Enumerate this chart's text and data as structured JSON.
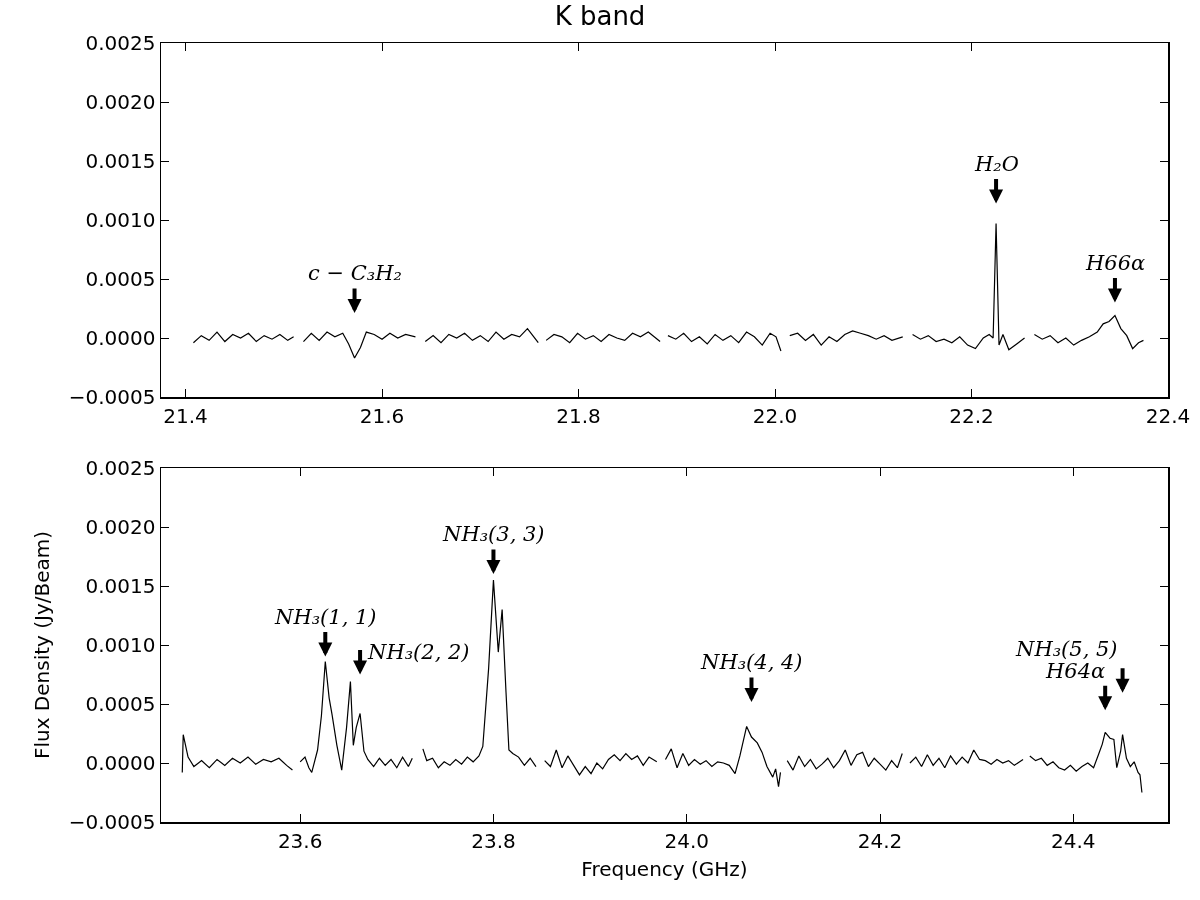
{
  "chart_data": [
    {
      "type": "line",
      "title": "K band",
      "color": "#000000",
      "x": [
        21.408,
        21.416,
        21.424,
        21.432,
        21.44,
        21.448,
        21.456,
        21.464,
        21.472,
        21.48,
        21.488,
        21.496,
        21.504,
        21.51,
        21.515,
        21.52,
        21.528,
        21.536,
        21.544,
        21.552,
        21.56,
        21.566,
        21.572,
        21.578,
        21.584,
        21.592,
        21.6,
        21.608,
        21.616,
        21.624,
        21.634,
        21.639,
        21.644,
        21.652,
        21.66,
        21.668,
        21.676,
        21.684,
        21.692,
        21.7,
        21.708,
        21.716,
        21.724,
        21.732,
        21.74,
        21.748,
        21.759,
        21.763,
        21.767,
        21.775,
        21.783,
        21.791,
        21.799,
        21.807,
        21.815,
        21.823,
        21.831,
        21.839,
        21.847,
        21.855,
        21.863,
        21.871,
        21.883,
        21.887,
        21.891,
        21.899,
        21.907,
        21.915,
        21.923,
        21.931,
        21.939,
        21.947,
        21.955,
        21.963,
        21.971,
        21.979,
        21.987,
        21.995,
        22.001,
        22.006,
        22.01,
        22.015,
        22.023,
        22.031,
        22.039,
        22.047,
        22.055,
        22.063,
        22.071,
        22.079,
        22.087,
        22.095,
        22.103,
        22.111,
        22.119,
        22.13,
        22.135,
        22.14,
        22.148,
        22.156,
        22.164,
        22.172,
        22.18,
        22.188,
        22.196,
        22.204,
        22.212,
        22.218,
        22.222,
        22.225,
        22.228,
        22.232,
        22.238,
        22.246,
        22.254,
        22.259,
        22.264,
        22.272,
        22.28,
        22.288,
        22.296,
        22.304,
        22.312,
        22.32,
        22.328,
        22.334,
        22.34,
        22.346,
        22.352,
        22.358,
        22.364,
        22.37,
        22.375
      ],
      "values": [
        -4e-05,
        2e-05,
        -2e-05,
        5e-05,
        -3e-05,
        3e-05,
        0.0,
        4e-05,
        -3e-05,
        2e-05,
        -1e-05,
        3e-05,
        -2e-05,
        1e-05,
        null,
        -3e-05,
        4e-05,
        -2e-05,
        5e-05,
        1e-05,
        4e-05,
        -5e-05,
        -0.00017,
        -8e-05,
        5e-05,
        3e-05,
        -1e-05,
        4e-05,
        0.0,
        3e-05,
        1e-05,
        null,
        -3e-05,
        2e-05,
        -4e-05,
        3e-05,
        0.0,
        4e-05,
        -2e-05,
        2e-05,
        -3e-05,
        5e-05,
        -1e-05,
        3e-05,
        1e-05,
        8e-05,
        -4e-05,
        null,
        -2e-05,
        3e-05,
        1e-05,
        -4e-05,
        4e-05,
        -1e-05,
        2e-05,
        -3e-05,
        3e-05,
        0.0,
        -2e-05,
        4e-05,
        1e-05,
        5e-05,
        -3e-05,
        null,
        2e-05,
        -1e-05,
        4e-05,
        -3e-05,
        1e-05,
        -5e-05,
        3e-05,
        -2e-05,
        2e-05,
        -4e-05,
        5e-05,
        1e-05,
        -6e-05,
        4e-05,
        1e-05,
        -0.00011,
        null,
        2e-05,
        4e-05,
        -2e-05,
        3e-05,
        -6e-05,
        1e-05,
        -3e-05,
        3e-05,
        6e-05,
        4e-05,
        2e-05,
        -1e-05,
        2e-05,
        -2e-05,
        1e-05,
        null,
        3e-05,
        -1e-05,
        2e-05,
        -3e-05,
        -1e-05,
        -4e-05,
        1e-05,
        -6e-05,
        -9e-05,
        0.0,
        3e-05,
        0.0,
        0.00097,
        -6e-05,
        3e-05,
        -0.0001,
        -5e-05,
        0.0,
        null,
        3e-05,
        -1e-05,
        2e-05,
        -4e-05,
        0.0,
        -6e-05,
        -2e-05,
        1e-05,
        5e-05,
        0.00012,
        0.00014,
        0.00019,
        8e-05,
        2e-05,
        -9e-05,
        -4e-05,
        -2e-05
      ],
      "xlim": [
        21.375,
        22.4
      ],
      "ylim": [
        -0.0005,
        0.0025
      ],
      "xticks": [
        21.4,
        21.6,
        21.8,
        {
          "value": 22.0,
          "label": "22.0"
        },
        22.2,
        22.4
      ],
      "yticks": [
        {
          "value": -0.0005,
          "label": "−0.0005"
        },
        {
          "value": 0,
          "label": "0.0000"
        },
        0.0005,
        {
          "value": 0.001,
          "label": "0.0010"
        },
        0.0015,
        {
          "value": 0.002,
          "label": "0.0020"
        },
        0.0025
      ],
      "annotations": [
        {
          "text": "c − C₃H₂",
          "x": 21.572,
          "y": -0.00017
        },
        {
          "text": "H₂O",
          "x": 22.225,
          "y": 0.00097
        },
        {
          "text": "H66α",
          "x": 22.346,
          "y": 0.00019
        }
      ],
      "grid": false
    },
    {
      "type": "line",
      "xlabel": "Frequency (GHz)",
      "ylabel": "Flux Density (Jy/Beam)",
      "color": "#000000",
      "x": [
        23.478,
        23.479,
        23.484,
        23.49,
        23.498,
        23.506,
        23.514,
        23.522,
        23.53,
        23.538,
        23.546,
        23.554,
        23.562,
        23.57,
        23.578,
        23.586,
        23.592,
        23.596,
        23.6,
        23.605,
        23.609,
        23.612,
        23.618,
        23.622,
        23.626,
        23.63,
        23.633,
        23.638,
        23.643,
        23.648,
        23.652,
        23.655,
        23.658,
        23.662,
        23.666,
        23.67,
        23.676,
        23.682,
        23.688,
        23.694,
        23.7,
        23.706,
        23.712,
        23.716,
        23.721,
        23.727,
        23.731,
        23.737,
        23.743,
        23.749,
        23.755,
        23.761,
        23.767,
        23.773,
        23.779,
        23.785,
        23.789,
        23.795,
        23.8,
        23.805,
        23.809,
        23.813,
        23.816,
        23.82,
        23.826,
        23.832,
        23.838,
        23.844,
        23.848,
        23.853,
        23.859,
        23.865,
        23.871,
        23.877,
        23.883,
        23.889,
        23.895,
        23.901,
        23.907,
        23.913,
        23.919,
        23.925,
        23.931,
        23.937,
        23.943,
        23.949,
        23.955,
        23.961,
        23.969,
        23.973,
        23.978,
        23.984,
        23.99,
        23.996,
        24.002,
        24.008,
        24.014,
        24.02,
        24.026,
        24.032,
        24.038,
        24.044,
        24.05,
        24.055,
        24.062,
        24.067,
        24.073,
        24.078,
        24.083,
        24.089,
        24.092,
        24.095,
        24.097,
        24.1,
        24.104,
        24.11,
        24.116,
        24.122,
        24.128,
        24.134,
        24.14,
        24.146,
        24.152,
        24.158,
        24.164,
        24.17,
        24.176,
        24.182,
        24.188,
        24.194,
        24.2,
        24.206,
        24.212,
        24.218,
        24.223,
        24.227,
        24.231,
        24.237,
        24.243,
        24.249,
        24.255,
        24.261,
        24.267,
        24.273,
        24.279,
        24.285,
        24.291,
        24.297,
        24.303,
        24.309,
        24.315,
        24.321,
        24.327,
        24.333,
        24.339,
        24.348,
        24.351,
        24.355,
        24.361,
        24.367,
        24.373,
        24.379,
        24.385,
        24.391,
        24.397,
        24.403,
        24.409,
        24.415,
        24.421,
        24.426,
        24.43,
        24.433,
        24.438,
        24.442,
        24.445,
        24.449,
        24.451,
        24.455,
        24.459,
        24.463,
        24.467,
        24.469,
        24.471
      ],
      "values": [
        -8e-05,
        0.00024,
        5e-05,
        -3e-05,
        2e-05,
        -4e-05,
        3e-05,
        -2e-05,
        4e-05,
        0.0,
        5e-05,
        -1e-05,
        3e-05,
        1e-05,
        4e-05,
        -2e-05,
        -6e-05,
        null,
        1e-05,
        5e-05,
        -4e-05,
        -8e-05,
        0.00011,
        0.0004,
        0.00086,
        0.00055,
        0.00041,
        0.00015,
        -6e-05,
        0.0003,
        0.00069,
        0.00015,
        0.0003,
        0.00042,
        0.0001,
        3e-05,
        -3e-05,
        4e-05,
        -2e-05,
        3e-05,
        -4e-05,
        5e-05,
        -3e-05,
        4e-05,
        null,
        0.00012,
        2e-05,
        4e-05,
        -4e-05,
        1e-05,
        -2e-05,
        3e-05,
        -1e-05,
        5e-05,
        1e-05,
        6e-05,
        0.00014,
        0.0008,
        0.00155,
        0.00094,
        0.0013,
        0.0006,
        0.00011,
        8e-05,
        5e-05,
        -2e-05,
        4e-05,
        -3e-05,
        null,
        2e-05,
        -3e-05,
        0.00011,
        -4e-05,
        6e-05,
        -2e-05,
        -0.0001,
        -3e-05,
        -9e-05,
        0.0,
        -5e-05,
        3e-05,
        7e-05,
        2e-05,
        8e-05,
        3e-05,
        6e-05,
        -2e-05,
        5e-05,
        1e-05,
        null,
        3e-05,
        0.00012,
        -4e-05,
        8e-05,
        -2e-05,
        3e-05,
        -1e-05,
        2e-05,
        -3e-05,
        1e-05,
        0.0,
        -2e-05,
        -9e-05,
        6e-05,
        0.00031,
        0.00022,
        0.00017,
        9e-05,
        -3e-05,
        -0.00012,
        -5e-05,
        -0.0002,
        -8e-05,
        null,
        2e-05,
        -6e-05,
        6e-05,
        -3e-05,
        3e-05,
        -5e-05,
        -1e-05,
        4e-05,
        -4e-05,
        2e-05,
        0.00011,
        -2e-05,
        7e-05,
        9e-05,
        -3e-05,
        4e-05,
        -1e-05,
        -6e-05,
        2e-05,
        -4e-05,
        8e-05,
        null,
        0.0,
        5e-05,
        -3e-05,
        7e-05,
        -2e-05,
        4e-05,
        -4e-05,
        6e-05,
        -1e-05,
        5e-05,
        0.0,
        0.00011,
        3e-05,
        2e-05,
        -1e-05,
        3e-05,
        0.0,
        2e-05,
        -2e-05,
        3e-05,
        null,
        6e-05,
        2e-05,
        4e-05,
        -2e-05,
        1e-05,
        -4e-05,
        -6e-05,
        -2e-05,
        -7e-05,
        -3e-05,
        0.0,
        -4e-05,
        7e-05,
        0.00016,
        0.00026,
        0.00021,
        0.0002,
        -4e-05,
        0.0001,
        0.00024,
        4e-05,
        -3e-05,
        1e-05,
        -8e-05,
        -0.0001,
        -0.00025
      ],
      "xlim": [
        23.456,
        24.498
      ],
      "ylim": [
        -0.0005,
        0.0025
      ],
      "xticks": [
        23.6,
        23.8,
        {
          "value": 24.0,
          "label": "24.0"
        },
        24.2,
        24.4
      ],
      "yticks": [
        {
          "value": -0.0005,
          "label": "−0.0005"
        },
        {
          "value": 0,
          "label": "0.0000"
        },
        0.0005,
        {
          "value": 0.001,
          "label": "0.0010"
        },
        0.0015,
        {
          "value": 0.002,
          "label": "0.0020"
        },
        0.0025
      ],
      "annotations": [
        {
          "text": "NH₃(1, 1)",
          "x": 23.626,
          "y": 0.00086
        },
        {
          "text": "NH₃(2, 2)",
          "x": 23.662,
          "y": 0.00042
        },
        {
          "text": "NH₃(3, 3)",
          "x": 23.8,
          "y": 0.00155
        },
        {
          "text": "NH₃(4, 4)",
          "x": 24.067,
          "y": 0.00022
        },
        {
          "text": "NH₃(5, 5)",
          "x": 24.451,
          "y": 0.00024
        },
        {
          "text": "H64α",
          "x": 24.433,
          "y": 0.00026
        }
      ],
      "grid": false
    }
  ]
}
